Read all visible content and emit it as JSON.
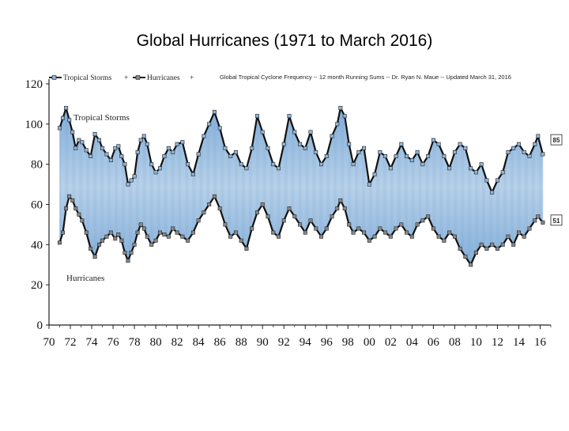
{
  "page": {
    "title": "Global Hurricanes (1971 to March 2016)"
  },
  "chart_data": {
    "type": "line",
    "title": "Global Tropical Cyclone Frequency -- 12 month Running Sums -- Dr. Ryan N. Maue -- Updated March 31, 2016",
    "xlabel": "",
    "ylabel": "",
    "xlim": [
      1970,
      2017
    ],
    "ylim": [
      0,
      120
    ],
    "x_tick_labels": [
      "70",
      "72",
      "74",
      "76",
      "78",
      "80",
      "82",
      "84",
      "86",
      "88",
      "90",
      "92",
      "94",
      "96",
      "98",
      "00",
      "02",
      "04",
      "06",
      "08",
      "10",
      "12",
      "14",
      "16"
    ],
    "y_ticks": [
      0,
      20,
      40,
      60,
      80,
      100,
      120
    ],
    "legend": {
      "position": "top-left",
      "entries": [
        "Tropical Storms",
        "Hurricanes"
      ]
    },
    "grid": false,
    "fill_between_series": true,
    "series": [
      {
        "name": "Tropical Storms",
        "color": "#111111",
        "marker_color": "#8fb4d8",
        "inline_label": "Tropical Storms",
        "end_label": "85",
        "points": [
          [
            1971.0,
            98
          ],
          [
            1971.3,
            103
          ],
          [
            1971.6,
            108
          ],
          [
            1971.9,
            102
          ],
          [
            1972.2,
            96
          ],
          [
            1972.5,
            88
          ],
          [
            1972.8,
            92
          ],
          [
            1973.1,
            91
          ],
          [
            1973.5,
            87
          ],
          [
            1973.9,
            84
          ],
          [
            1974.3,
            95
          ],
          [
            1974.7,
            92
          ],
          [
            1975.0,
            88
          ],
          [
            1975.4,
            85
          ],
          [
            1975.8,
            82
          ],
          [
            1976.2,
            88
          ],
          [
            1976.5,
            89
          ],
          [
            1976.8,
            84
          ],
          [
            1977.1,
            80
          ],
          [
            1977.4,
            70
          ],
          [
            1977.7,
            72
          ],
          [
            1978.0,
            74
          ],
          [
            1978.3,
            86
          ],
          [
            1978.6,
            92
          ],
          [
            1978.9,
            94
          ],
          [
            1979.2,
            90
          ],
          [
            1979.6,
            80
          ],
          [
            1980.0,
            76
          ],
          [
            1980.4,
            78
          ],
          [
            1980.8,
            84
          ],
          [
            1981.2,
            88
          ],
          [
            1981.6,
            86
          ],
          [
            1982.0,
            90
          ],
          [
            1982.5,
            91
          ],
          [
            1983.0,
            80
          ],
          [
            1983.5,
            75
          ],
          [
            1984.0,
            85
          ],
          [
            1984.5,
            94
          ],
          [
            1985.0,
            100
          ],
          [
            1985.5,
            106
          ],
          [
            1986.0,
            98
          ],
          [
            1986.5,
            88
          ],
          [
            1987.0,
            84
          ],
          [
            1987.5,
            86
          ],
          [
            1988.0,
            80
          ],
          [
            1988.5,
            78
          ],
          [
            1989.0,
            88
          ],
          [
            1989.5,
            104
          ],
          [
            1990.0,
            96
          ],
          [
            1990.5,
            88
          ],
          [
            1991.0,
            80
          ],
          [
            1991.5,
            78
          ],
          [
            1992.0,
            90
          ],
          [
            1992.5,
            104
          ],
          [
            1993.0,
            96
          ],
          [
            1993.5,
            90
          ],
          [
            1994.0,
            88
          ],
          [
            1994.5,
            96
          ],
          [
            1995.0,
            86
          ],
          [
            1995.5,
            80
          ],
          [
            1996.0,
            84
          ],
          [
            1996.5,
            94
          ],
          [
            1997.0,
            100
          ],
          [
            1997.3,
            108
          ],
          [
            1997.7,
            104
          ],
          [
            1998.1,
            90
          ],
          [
            1998.5,
            80
          ],
          [
            1999.0,
            86
          ],
          [
            1999.5,
            88
          ],
          [
            2000.0,
            70
          ],
          [
            2000.5,
            75
          ],
          [
            2001.0,
            86
          ],
          [
            2001.5,
            84
          ],
          [
            2002.0,
            78
          ],
          [
            2002.5,
            84
          ],
          [
            2003.0,
            90
          ],
          [
            2003.5,
            84
          ],
          [
            2004.0,
            82
          ],
          [
            2004.5,
            86
          ],
          [
            2005.0,
            80
          ],
          [
            2005.5,
            84
          ],
          [
            2006.0,
            92
          ],
          [
            2006.5,
            90
          ],
          [
            2007.0,
            84
          ],
          [
            2007.5,
            78
          ],
          [
            2008.0,
            86
          ],
          [
            2008.5,
            90
          ],
          [
            2009.0,
            88
          ],
          [
            2009.5,
            78
          ],
          [
            2010.0,
            76
          ],
          [
            2010.5,
            80
          ],
          [
            2011.0,
            72
          ],
          [
            2011.5,
            66
          ],
          [
            2012.0,
            72
          ],
          [
            2012.5,
            76
          ],
          [
            2013.0,
            86
          ],
          [
            2013.5,
            88
          ],
          [
            2014.0,
            90
          ],
          [
            2014.5,
            86
          ],
          [
            2015.0,
            84
          ],
          [
            2015.5,
            90
          ],
          [
            2015.8,
            94
          ],
          [
            2016.25,
            85
          ]
        ]
      },
      {
        "name": "Hurricanes",
        "color": "#111111",
        "marker_color": "#888888",
        "inline_label": "Hurricanes",
        "end_label": "51",
        "points": [
          [
            1971.0,
            41
          ],
          [
            1971.3,
            46
          ],
          [
            1971.6,
            58
          ],
          [
            1971.9,
            64
          ],
          [
            1972.2,
            62
          ],
          [
            1972.5,
            58
          ],
          [
            1972.8,
            55
          ],
          [
            1973.1,
            52
          ],
          [
            1973.5,
            46
          ],
          [
            1973.9,
            38
          ],
          [
            1974.3,
            34
          ],
          [
            1974.7,
            40
          ],
          [
            1975.0,
            42
          ],
          [
            1975.4,
            44
          ],
          [
            1975.8,
            46
          ],
          [
            1976.2,
            43
          ],
          [
            1976.5,
            45
          ],
          [
            1976.8,
            42
          ],
          [
            1977.1,
            36
          ],
          [
            1977.4,
            32
          ],
          [
            1977.7,
            36
          ],
          [
            1978.0,
            40
          ],
          [
            1978.3,
            46
          ],
          [
            1978.6,
            50
          ],
          [
            1978.9,
            48
          ],
          [
            1979.2,
            44
          ],
          [
            1979.6,
            40
          ],
          [
            1980.0,
            42
          ],
          [
            1980.4,
            46
          ],
          [
            1980.8,
            45
          ],
          [
            1981.2,
            44
          ],
          [
            1981.6,
            48
          ],
          [
            1982.0,
            46
          ],
          [
            1982.5,
            44
          ],
          [
            1983.0,
            42
          ],
          [
            1983.5,
            46
          ],
          [
            1984.0,
            52
          ],
          [
            1984.5,
            56
          ],
          [
            1985.0,
            60
          ],
          [
            1985.5,
            64
          ],
          [
            1986.0,
            58
          ],
          [
            1986.5,
            50
          ],
          [
            1987.0,
            44
          ],
          [
            1987.5,
            46
          ],
          [
            1988.0,
            42
          ],
          [
            1988.5,
            38
          ],
          [
            1989.0,
            48
          ],
          [
            1989.5,
            56
          ],
          [
            1990.0,
            60
          ],
          [
            1990.5,
            54
          ],
          [
            1991.0,
            46
          ],
          [
            1991.5,
            44
          ],
          [
            1992.0,
            52
          ],
          [
            1992.5,
            58
          ],
          [
            1993.0,
            54
          ],
          [
            1993.5,
            50
          ],
          [
            1994.0,
            46
          ],
          [
            1994.5,
            52
          ],
          [
            1995.0,
            48
          ],
          [
            1995.5,
            44
          ],
          [
            1996.0,
            48
          ],
          [
            1996.5,
            54
          ],
          [
            1997.0,
            58
          ],
          [
            1997.3,
            62
          ],
          [
            1997.7,
            58
          ],
          [
            1998.1,
            50
          ],
          [
            1998.5,
            46
          ],
          [
            1999.0,
            48
          ],
          [
            1999.5,
            46
          ],
          [
            2000.0,
            42
          ],
          [
            2000.5,
            44
          ],
          [
            2001.0,
            48
          ],
          [
            2001.5,
            46
          ],
          [
            2002.0,
            44
          ],
          [
            2002.5,
            48
          ],
          [
            2003.0,
            50
          ],
          [
            2003.5,
            46
          ],
          [
            2004.0,
            44
          ],
          [
            2004.5,
            50
          ],
          [
            2005.0,
            52
          ],
          [
            2005.5,
            54
          ],
          [
            2006.0,
            48
          ],
          [
            2006.5,
            44
          ],
          [
            2007.0,
            42
          ],
          [
            2007.5,
            46
          ],
          [
            2008.0,
            44
          ],
          [
            2008.5,
            38
          ],
          [
            2009.0,
            34
          ],
          [
            2009.5,
            30
          ],
          [
            2010.0,
            36
          ],
          [
            2010.5,
            40
          ],
          [
            2011.0,
            38
          ],
          [
            2011.5,
            40
          ],
          [
            2012.0,
            38
          ],
          [
            2012.5,
            40
          ],
          [
            2013.0,
            44
          ],
          [
            2013.5,
            40
          ],
          [
            2014.0,
            46
          ],
          [
            2014.5,
            44
          ],
          [
            2015.0,
            48
          ],
          [
            2015.5,
            52
          ],
          [
            2015.8,
            54
          ],
          [
            2016.25,
            51
          ]
        ]
      }
    ]
  },
  "colors": {
    "fill": "#9ec2e4",
    "line": "#111111",
    "axis": "#222222"
  }
}
